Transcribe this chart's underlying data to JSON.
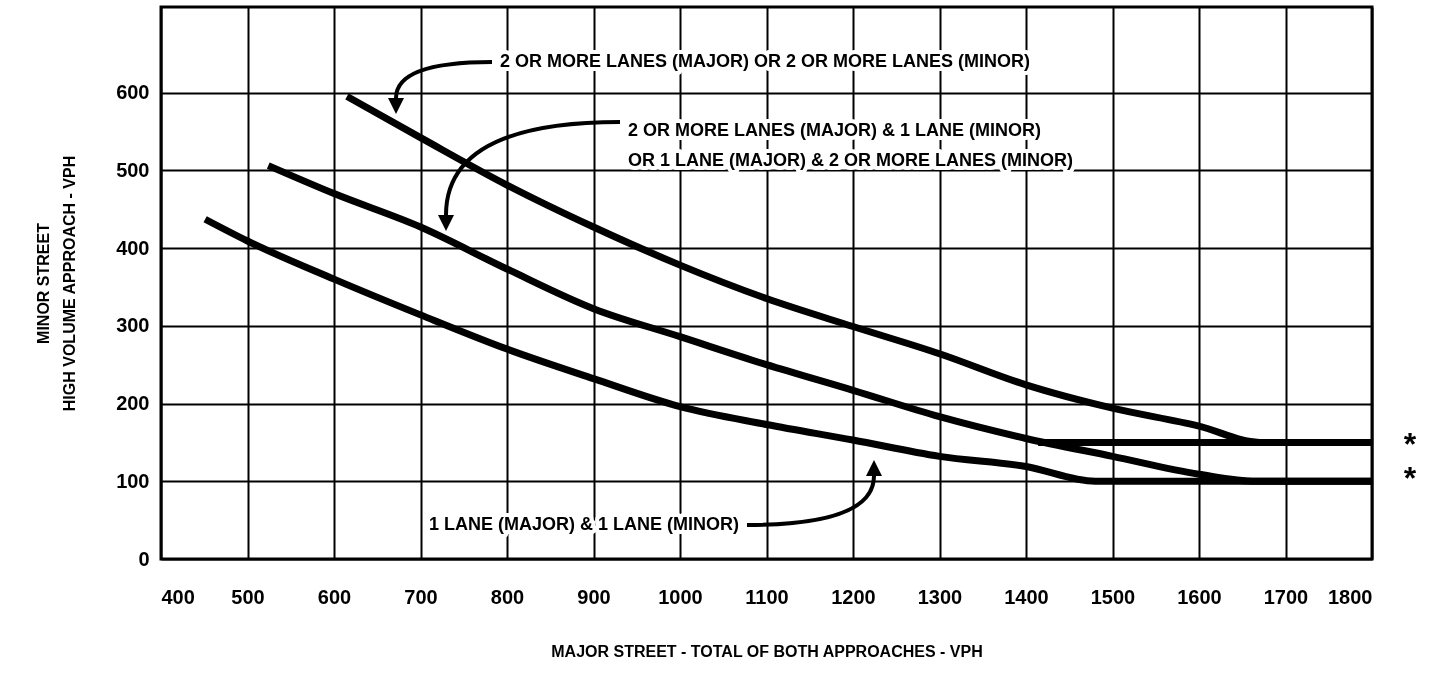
{
  "chart_data": {
    "type": "line",
    "xlabel": "MAJOR STREET - TOTAL OF BOTH APPROACHES - VPH",
    "ylabel": "MINOR STREET\nHIGH VOLUME APPROACH - VPH",
    "xlim": [
      400,
      1800
    ],
    "ylim": [
      0,
      710
    ],
    "xticks": [
      400,
      500,
      600,
      700,
      800,
      900,
      1000,
      1100,
      1200,
      1300,
      1400,
      1500,
      1600,
      1700,
      1800
    ],
    "yticks": [
      0,
      100,
      200,
      300,
      400,
      500,
      600
    ],
    "grid": true,
    "marker": "none",
    "line_style": "solid",
    "series": [
      {
        "color": "#000000",
        "x": [
          451,
          500,
          600,
          700,
          800,
          900,
          1000,
          1100,
          1200,
          1300,
          1400,
          1480,
          1800
        ],
        "values": [
          437,
          409,
          360,
          314,
          270,
          232,
          196,
          173,
          153,
          132,
          119,
          100,
          100
        ]
      },
      {
        "color": "#000000",
        "x": [
          524,
          600,
          700,
          800,
          900,
          1000,
          1100,
          1200,
          1300,
          1400,
          1500,
          1600,
          1666,
          1800
        ],
        "values": [
          506,
          470,
          427,
          373,
          322,
          286,
          250,
          217,
          183,
          155,
          132,
          109,
          100,
          100
        ]
      },
      {
        "color": "#000000",
        "x": [
          615,
          700,
          800,
          900,
          1000,
          1100,
          1200,
          1300,
          1400,
          1500,
          1600,
          1670,
          1800
        ],
        "values": [
          595,
          542,
          481,
          427,
          378,
          335,
          299,
          264,
          224,
          194,
          171,
          150,
          150
        ]
      },
      {
        "color": "#000000",
        "x": [
          1414,
          1800
        ],
        "values": [
          150,
          150
        ]
      }
    ],
    "annotations": [
      "2 OR MORE LANES (MAJOR) OR 2 OR MORE LANES (MINOR)",
      "2 OR MORE LANES (MAJOR) & 1 LANE (MINOR)\nOR 1 LANE (MAJOR) & 2 OR MORE LANES (MINOR)",
      "1 LANE (MAJOR) & 1 LANE (MINOR)",
      "*",
      "*"
    ]
  }
}
